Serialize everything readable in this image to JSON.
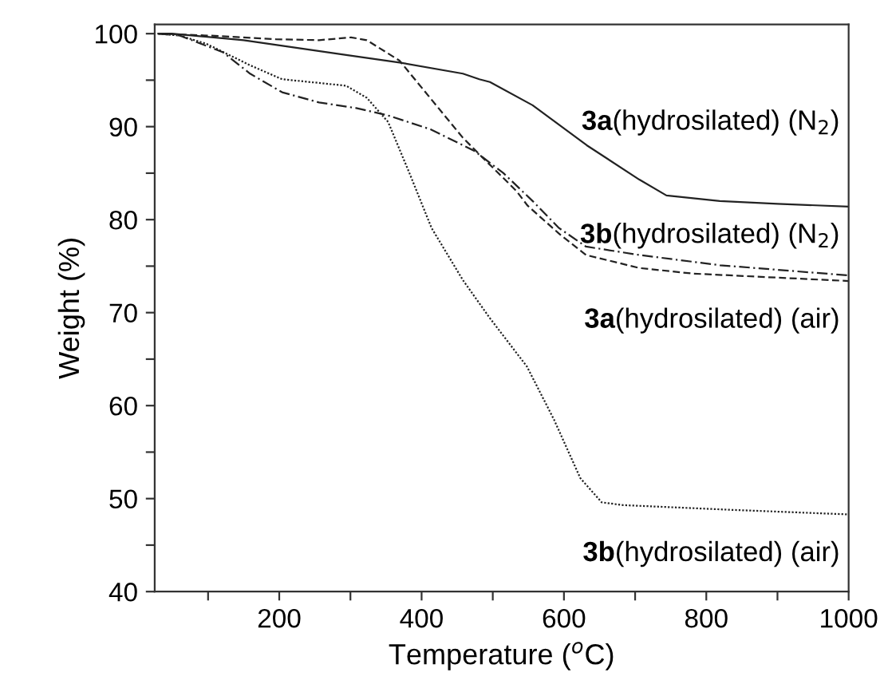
{
  "chart_data": {
    "type": "line",
    "xlabel": "Temperature ($^{o}$C)",
    "ylabel": "Weight (%)",
    "xlim": [
      25,
      1000
    ],
    "ylim": [
      40,
      101
    ],
    "xticks": [
      {
        "value": 100,
        "label": null
      },
      200,
      {
        "value": 300,
        "label": null
      },
      400,
      {
        "value": 500,
        "label": null
      },
      600,
      {
        "value": 700,
        "label": null
      },
      800,
      {
        "value": 900,
        "label": null
      },
      1000
    ],
    "yticks": [
      40,
      {
        "value": 45,
        "label": null
      },
      50,
      {
        "value": 55,
        "label": null
      },
      60,
      {
        "value": 65,
        "label": null
      },
      70,
      {
        "value": 75,
        "label": null
      },
      80,
      {
        "value": 85,
        "label": null
      },
      90,
      {
        "value": 95,
        "label": null
      },
      100
    ],
    "grid": false,
    "legend": false,
    "marker": "none",
    "series": [
      {
        "name": "3a(hydrosilated) (N$_{2}$)",
        "color": "#222222",
        "line_style": "solid",
        "x": [
          30,
          49,
          150,
          294,
          369,
          458,
          481,
          496,
          556,
          632,
          706,
          744,
          819,
          900,
          1000
        ],
        "values": [
          100,
          100,
          99.3,
          97.7,
          96.9,
          95.7,
          95.1,
          94.8,
          92.3,
          88,
          84.3,
          82.6,
          82,
          81.7,
          81.4
        ]
      },
      {
        "name": "3a(hydrosilated) (air)",
        "color": "#222222",
        "line_style": "dashed",
        "x": [
          30,
          100,
          195,
          256,
          301,
          323,
          369,
          414,
          458,
          488,
          533,
          549,
          593,
          631,
          706,
          781,
          1000
        ],
        "values": [
          100,
          99.8,
          99.4,
          99.3,
          99.6,
          99.3,
          97.1,
          92.9,
          88.8,
          86.5,
          83.1,
          81.5,
          78.5,
          76.2,
          74.8,
          74.2,
          73.4
        ]
      },
      {
        "name": "3b(hydrosilated) (N$_{2}$)",
        "color": "#222222",
        "line_style": "dashdot",
        "x": [
          30,
          60,
          121,
          159,
          204,
          256,
          308,
          353,
          413,
          474,
          515,
          556,
          593,
          631,
          706,
          819,
          1000
        ],
        "values": [
          100,
          99.8,
          98,
          95.7,
          93.7,
          92.6,
          92,
          91.2,
          89.7,
          87.4,
          85,
          82,
          79.1,
          77.1,
          76.2,
          75.1,
          74
        ]
      },
      {
        "name": "3b(hydrosilated) (air)",
        "color": "#222222",
        "line_style": "dotted",
        "x": [
          30,
          60,
          98,
          159,
          204,
          256,
          294,
          323,
          353,
          384,
          414,
          458,
          496,
          548,
          586,
          623,
          653,
          683,
          833,
          1000
        ],
        "values": [
          100,
          99.8,
          98.9,
          96.6,
          95.1,
          94.7,
          94.4,
          93.1,
          90.5,
          84.8,
          79.1,
          73.5,
          69.4,
          64.2,
          58.5,
          52.2,
          49.6,
          49.3,
          48.8,
          48.3
        ]
      }
    ]
  }
}
